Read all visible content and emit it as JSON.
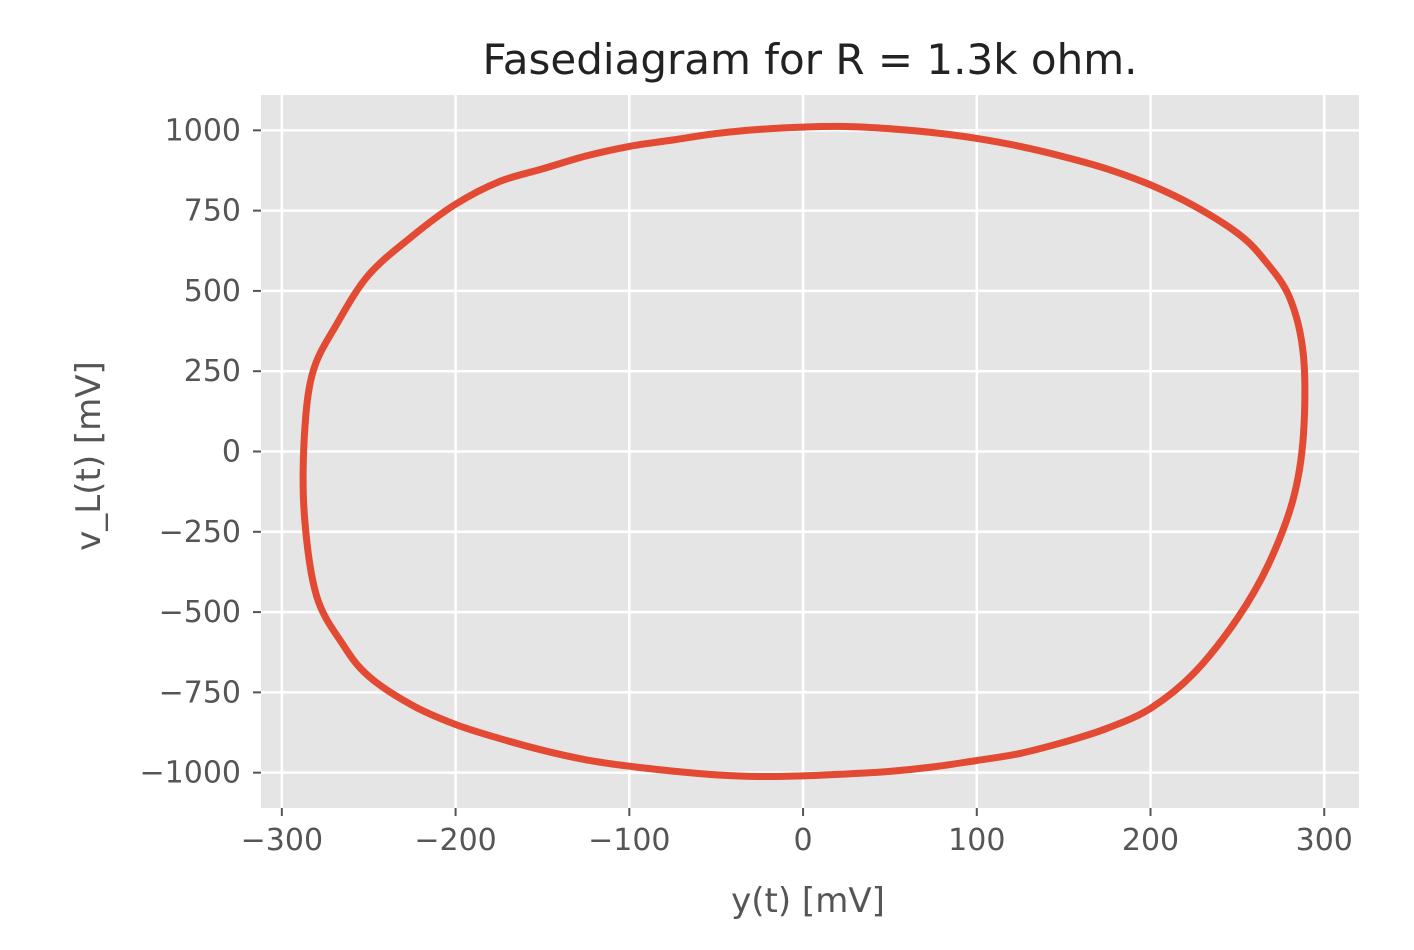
{
  "chart_data": {
    "type": "line",
    "title": "Fasediagram for R = 1.3k ohm.",
    "xlabel": "y(t) [mV]",
    "ylabel": "v_L(t) [mV]",
    "xlim": [
      -312,
      320
    ],
    "ylim": [
      -1110,
      1110
    ],
    "x_ticks": [
      -300,
      -200,
      -100,
      0,
      100,
      200,
      300
    ],
    "x_tick_labels": [
      "−300",
      "−200",
      "−100",
      "0",
      "100",
      "200",
      "300"
    ],
    "y_ticks": [
      1000,
      750,
      500,
      250,
      0,
      -250,
      -500,
      -750,
      -1000
    ],
    "y_tick_labels": [
      "1000",
      "750",
      "500",
      "250",
      "0",
      "−250",
      "−500",
      "−750",
      "−1000"
    ],
    "grid": true,
    "series": [
      {
        "color": "#e24a33",
        "x": [
          0,
          25,
          50,
          75,
          100,
          125,
          150,
          175,
          200,
          225,
          250,
          265,
          280,
          288,
          288,
          282,
          268,
          250,
          225,
          200,
          175,
          150,
          125,
          100,
          75,
          50,
          25,
          0,
          -25,
          -50,
          -75,
          -100,
          -125,
          -150,
          -175,
          -200,
          -225,
          -250,
          -265,
          -280,
          -287,
          -287,
          -282,
          -268,
          -250,
          -225,
          -200,
          -175,
          -150,
          -125,
          -100,
          -75,
          -50,
          -25,
          0
        ],
        "y": [
          1010,
          1012,
          1005,
          993,
          975,
          950,
          918,
          880,
          830,
          765,
          680,
          600,
          480,
          300,
          50,
          -150,
          -350,
          -520,
          -690,
          -800,
          -862,
          -905,
          -940,
          -962,
          -982,
          -996,
          -1004,
          -1010,
          -1012,
          -1007,
          -995,
          -980,
          -960,
          -930,
          -893,
          -850,
          -790,
          -700,
          -600,
          -450,
          -200,
          50,
          250,
          400,
          550,
          670,
          770,
          840,
          880,
          920,
          950,
          970,
          990,
          1003,
          1010
        ]
      }
    ]
  },
  "style": {
    "plot_bg": "#e5e5e5",
    "grid_color": "#ffffff",
    "tick_color": "#555555",
    "line_color": "#e24a33"
  }
}
